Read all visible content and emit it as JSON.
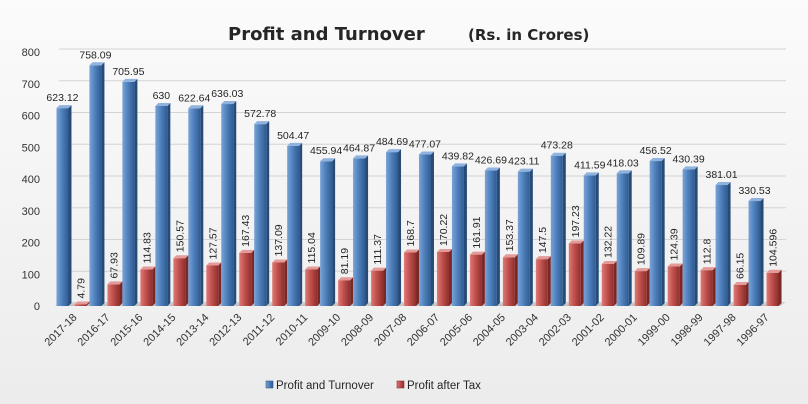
{
  "chart_data": {
    "type": "bar",
    "title": "Profit and Turnover",
    "title_unit": "(Rs. in Crores)",
    "xlabel": "",
    "ylabel": "",
    "ylim": [
      0,
      800
    ],
    "yticks": [
      0,
      100,
      200,
      300,
      400,
      500,
      600,
      700,
      800
    ],
    "grid": true,
    "legend_position": "bottom",
    "categories": [
      "2017-18",
      "2016-17",
      "2015-16",
      "2014-15",
      "2013-14",
      "2012-13",
      "2011-12",
      "2010-11",
      "2009-10",
      "2008-09",
      "2007-08",
      "2006-07",
      "2005-06",
      "2004-05",
      "2003-04",
      "2002-03",
      "2001-02",
      "2000-01",
      "1999-00",
      "1998-99",
      "1997-98",
      "1996-97"
    ],
    "series": [
      {
        "name": "Profit and Turnover",
        "color": "#4f81bd",
        "values": [
          623.12,
          758.09,
          705.95,
          630,
          622.64,
          636.03,
          572.78,
          504.47,
          455.94,
          464.87,
          484.69,
          477.07,
          439.82,
          426.69,
          423.11,
          473.28,
          411.59,
          418.03,
          456.52,
          430.39,
          381.01,
          330.53
        ]
      },
      {
        "name": "Profit after Tax",
        "color": "#c0504d",
        "values": [
          4.79,
          67.93,
          114.83,
          150.57,
          127.57,
          167.43,
          137.09,
          115.04,
          81.19,
          111.37,
          168.7,
          170.22,
          161.91,
          153.37,
          147.5,
          197.23,
          132.22,
          109.89,
          124.39,
          112.8,
          66.15,
          104.596
        ]
      }
    ],
    "data_labels": [
      [
        "623.12",
        "758.09",
        "705.95",
        "630",
        "622.64",
        "636.03",
        "572.78",
        "504.47",
        "455.94",
        "464.87",
        "484.69",
        "477.07",
        "439.82",
        "426.69",
        "423.11",
        "473.28",
        "411.59",
        "418.03",
        "456.52",
        "430.39",
        "381.01",
        "330.53"
      ],
      [
        "4.79",
        "67.93",
        "114.83",
        "150.57",
        "127.57",
        "167.43",
        "137.09",
        "115.04",
        "81.19",
        "111.37",
        "168.7",
        "170.22",
        "161.91",
        "153.37",
        "147.5",
        "197.23",
        "132.22",
        "109.89",
        "124.39",
        "112.8",
        "66.15",
        "104.596"
      ]
    ],
    "legend_labels": [
      "Profit and Turnover",
      "Profit after Tax"
    ]
  }
}
